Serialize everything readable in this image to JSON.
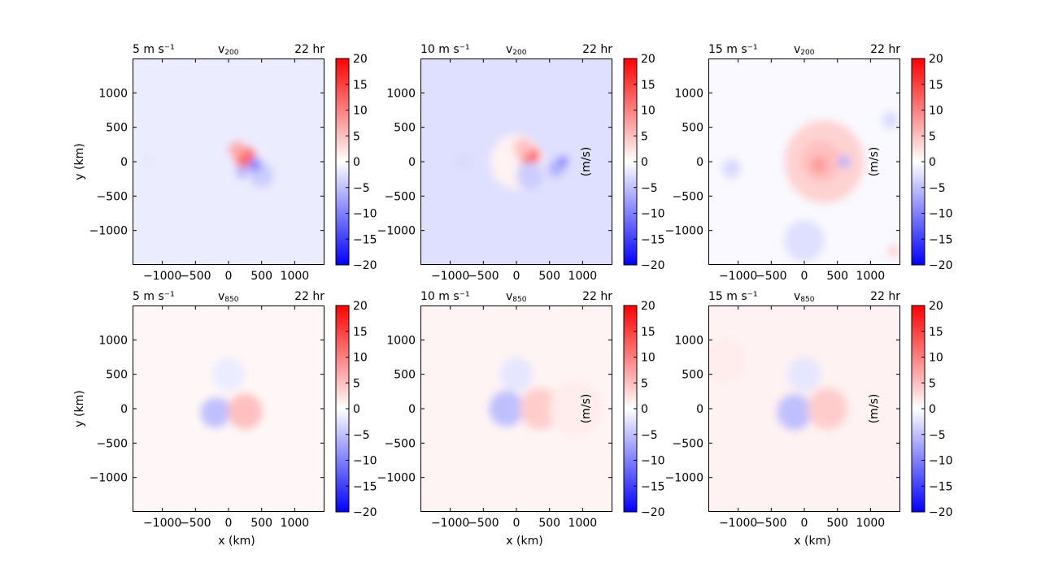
{
  "chart_data": {
    "type": "heatmap",
    "figure_rows": [
      "v200",
      "v850"
    ],
    "panels": [
      {
        "row": 0,
        "col": 0,
        "left_label": "5 m s⁻¹",
        "title_main": "v",
        "title_sub": "200",
        "right_label": "22 hr",
        "ylabel": "y (km)",
        "xlabel": "",
        "colorbar_label": "",
        "field": {
          "background": -1.5,
          "blobs": [
            [
              0,
              0,
              300,
              -1.5
            ],
            [
              250,
              50,
              160,
              12
            ],
            [
              120,
              170,
              120,
              7
            ],
            [
              500,
              -200,
              180,
              -4
            ],
            [
              400,
              -50,
              100,
              -9
            ],
            [
              -1200,
              0,
              80,
              -2
            ],
            [
              200,
              -150,
              90,
              -6
            ]
          ]
        }
      },
      {
        "row": 0,
        "col": 1,
        "left_label": "10 m s⁻¹",
        "title_main": "v",
        "title_sub": "200",
        "right_label": "22 hr",
        "ylabel": "",
        "xlabel": "",
        "colorbar_label": "(m/s)",
        "field": {
          "background": -2.5,
          "blobs": [
            [
              0,
              0,
              400,
              1
            ],
            [
              200,
              80,
              150,
              13
            ],
            [
              100,
              200,
              140,
              5
            ],
            [
              600,
              -100,
              120,
              -6
            ],
            [
              700,
              0,
              80,
              -9
            ],
            [
              -800,
              0,
              120,
              -3
            ],
            [
              200,
              -200,
              200,
              -4
            ]
          ]
        }
      },
      {
        "row": 0,
        "col": 2,
        "left_label": "15 m s⁻¹",
        "title_main": "v",
        "title_sub": "200",
        "right_label": "22 hr",
        "ylabel": "",
        "xlabel": "",
        "colorbar_label": "(m/s)",
        "field": {
          "background": -0.5,
          "blobs": [
            [
              300,
              0,
              600,
              3.5
            ],
            [
              250,
              0,
              300,
              5
            ],
            [
              220,
              -50,
              120,
              8
            ],
            [
              600,
              0,
              90,
              -6
            ],
            [
              -1100,
              -100,
              140,
              -3
            ],
            [
              0,
              -1150,
              300,
              -2.5
            ],
            [
              1350,
              -1300,
              80,
              4
            ],
            [
              1300,
              600,
              120,
              -3
            ]
          ]
        }
      },
      {
        "row": 1,
        "col": 0,
        "left_label": "5 m s⁻¹",
        "title_main": "v",
        "title_sub": "850",
        "right_label": "22 hr",
        "ylabel": "y (km)",
        "xlabel": "x (km)",
        "colorbar_label": "",
        "field": {
          "background": 0.6,
          "blobs": [
            [
              -130,
              0,
              140,
              -15
            ],
            [
              150,
              0,
              140,
              15
            ],
            [
              -200,
              -60,
              220,
              -5
            ],
            [
              250,
              -40,
              260,
              5
            ],
            [
              0,
              500,
              250,
              -1.5
            ]
          ]
        }
      },
      {
        "row": 1,
        "col": 1,
        "left_label": "10 m s⁻¹",
        "title_main": "v",
        "title_sub": "850",
        "right_label": "22 hr",
        "ylabel": "",
        "xlabel": "x (km)",
        "colorbar_label": "(m/s)",
        "field": {
          "background": 0.9,
          "blobs": [
            [
              -60,
              -60,
              140,
              -13
            ],
            [
              220,
              -60,
              120,
              15
            ],
            [
              -150,
              0,
              260,
              -5
            ],
            [
              350,
              0,
              300,
              4
            ],
            [
              0,
              500,
              250,
              -2
            ],
            [
              900,
              0,
              400,
              1.5
            ]
          ]
        }
      },
      {
        "row": 1,
        "col": 2,
        "left_label": "15 m s⁻¹",
        "title_main": "v",
        "title_sub": "850",
        "right_label": "22 hr",
        "ylabel": "",
        "xlabel": "x (km)",
        "colorbar_label": "(m/s)",
        "field": {
          "background": 1.0,
          "blobs": [
            [
              -60,
              -100,
              140,
              -12
            ],
            [
              260,
              -60,
              140,
              13
            ],
            [
              -150,
              -50,
              260,
              -5
            ],
            [
              350,
              0,
              300,
              4
            ],
            [
              0,
              500,
              250,
              -2
            ],
            [
              -1200,
              700,
              300,
              1.5
            ]
          ]
        }
      }
    ],
    "x_ticks": [
      -1000,
      -500,
      0,
      500,
      1000
    ],
    "x_tick_labels": [
      "−1000",
      "−500",
      "0",
      "500",
      "1000"
    ],
    "y_ticks": [
      1000,
      500,
      0,
      -500,
      -1000
    ],
    "y_tick_labels": [
      "1000",
      "500",
      "0",
      "−500",
      "−1000"
    ],
    "xlim": [
      -1450,
      1450
    ],
    "ylim": [
      -1500,
      1500
    ],
    "colorbar": {
      "range": [
        -20,
        20
      ],
      "ticks": [
        20,
        15,
        10,
        5,
        0,
        -5,
        -10,
        -15,
        -20
      ],
      "tick_labels": [
        "20",
        "15",
        "10",
        "5",
        "0",
        "−5",
        "−10",
        "−15",
        "−20"
      ],
      "colormap": "bwr",
      "low_color": "#0000ff",
      "mid_color": "#ffffff",
      "high_color": "#ff0000"
    }
  }
}
